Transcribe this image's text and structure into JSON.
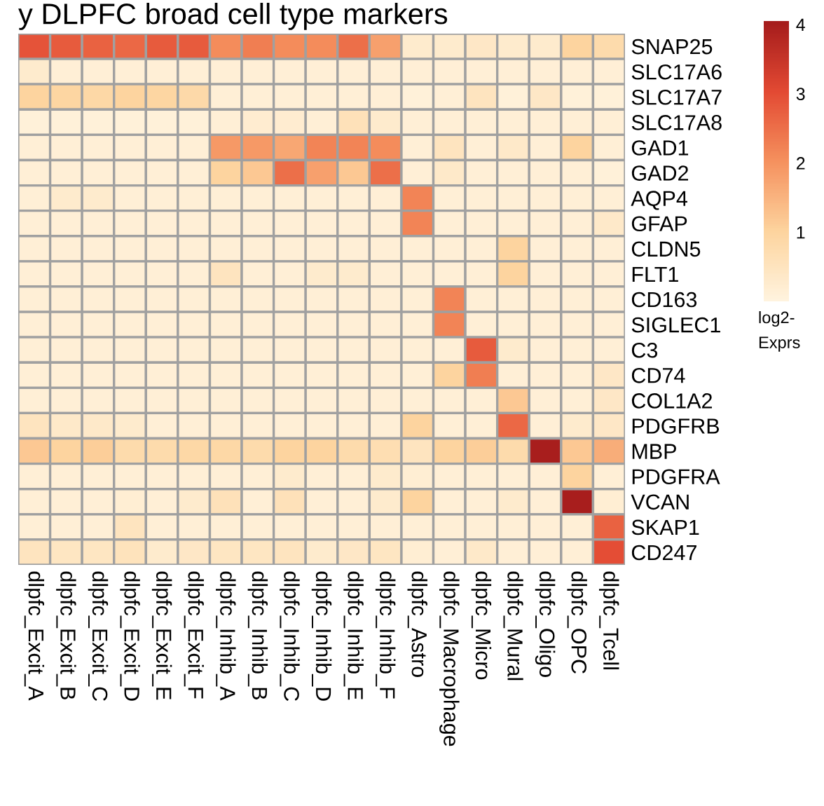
{
  "chart_data": {
    "type": "heatmap",
    "title": "y DLPFC broad cell type markers",
    "clabel": "log2-\nExprs",
    "clim": [
      0,
      4.05
    ],
    "cticks": [
      1,
      2,
      3,
      4
    ],
    "categories": [
      "dlpfc_Excit_A",
      "dlpfc_Excit_B",
      "dlpfc_Excit_C",
      "dlpfc_Excit_D",
      "dlpfc_Excit_E",
      "dlpfc_Excit_F",
      "dlpfc_Inhib_A",
      "dlpfc_Inhib_B",
      "dlpfc_Inhib_C",
      "dlpfc_Inhib_D",
      "dlpfc_Inhib_E",
      "dlpfc_Inhib_F",
      "dlpfc_Astro",
      "dlpfc_Macrophage",
      "dlpfc_Micro",
      "dlpfc_Mural",
      "dlpfc_Oligo",
      "dlpfc_OPC",
      "dlpfc_Tcell"
    ],
    "y_categories": [
      "SNAP25",
      "SLC17A6",
      "SLC17A7",
      "SLC17A8",
      "GAD1",
      "GAD2",
      "AQP4",
      "GFAP",
      "CLDN5",
      "FLT1",
      "CD163",
      "SIGLEC1",
      "C3",
      "CD74",
      "COL1A2",
      "PDGFRB",
      "MBP",
      "PDGFRA",
      "VCAN",
      "SKAP1",
      "CD247"
    ],
    "cells": [
      [
        2.9,
        2.8,
        2.7,
        2.6,
        2.8,
        2.8,
        2.1,
        2.3,
        2.1,
        2.1,
        2.5,
        1.8,
        0.3,
        0.3,
        0.4,
        0.3,
        0.3,
        1.0,
        0.8
      ],
      [
        0.3,
        0.15,
        0.15,
        0.15,
        0.15,
        0.15,
        0.15,
        0.15,
        0.15,
        0.15,
        0.15,
        0.15,
        0.15,
        0.15,
        0.15,
        0.15,
        0.15,
        0.15,
        0.15
      ],
      [
        1.0,
        0.95,
        0.9,
        1.0,
        0.95,
        0.85,
        0.15,
        0.15,
        0.15,
        0.15,
        0.15,
        0.15,
        0.1,
        0.15,
        0.5,
        0.1,
        0.4,
        0.1,
        0.1
      ],
      [
        0.1,
        0.1,
        0.1,
        0.1,
        0.1,
        0.1,
        0.15,
        0.25,
        0.25,
        0.15,
        0.6,
        0.3,
        0.15,
        0.15,
        0.15,
        0.15,
        0.15,
        0.15,
        0.15
      ],
      [
        0.15,
        0.15,
        0.15,
        0.15,
        0.15,
        0.15,
        1.9,
        1.9,
        1.7,
        2.2,
        2.2,
        2.1,
        0.15,
        0.5,
        0.15,
        0.35,
        0.15,
        1.0,
        0.15
      ],
      [
        0.15,
        0.15,
        0.15,
        0.15,
        0.15,
        0.15,
        1.0,
        1.2,
        2.5,
        1.8,
        1.2,
        2.5,
        0.15,
        0.35,
        0.15,
        0.15,
        0.15,
        0.15,
        0.1
      ],
      [
        0.15,
        0.3,
        0.3,
        0.15,
        0.15,
        0.15,
        0.15,
        0.15,
        0.15,
        0.15,
        0.15,
        0.15,
        2.2,
        0.15,
        0.15,
        0.15,
        0.15,
        0.15,
        0.15
      ],
      [
        0.15,
        0.15,
        0.15,
        0.15,
        0.15,
        0.15,
        0.15,
        0.15,
        0.15,
        0.15,
        0.15,
        0.15,
        2.2,
        0.15,
        0.15,
        0.15,
        0.15,
        0.15,
        0.35
      ],
      [
        0.15,
        0.15,
        0.15,
        0.15,
        0.15,
        0.15,
        0.15,
        0.15,
        0.15,
        0.15,
        0.15,
        0.15,
        0.15,
        0.15,
        0.15,
        1.0,
        0.15,
        0.15,
        0.15
      ],
      [
        0.15,
        0.15,
        0.15,
        0.15,
        0.15,
        0.15,
        0.5,
        0.15,
        0.15,
        0.3,
        0.3,
        0.15,
        0.15,
        0.15,
        0.15,
        1.0,
        0.15,
        0.15,
        0.15
      ],
      [
        0.15,
        0.15,
        0.15,
        0.15,
        0.15,
        0.15,
        0.15,
        0.15,
        0.15,
        0.15,
        0.15,
        0.15,
        0.15,
        2.2,
        0.15,
        0.15,
        0.15,
        0.15,
        0.15
      ],
      [
        0.15,
        0.15,
        0.15,
        0.15,
        0.15,
        0.15,
        0.15,
        0.15,
        0.15,
        0.15,
        0.15,
        0.15,
        0.15,
        2.2,
        0.15,
        0.15,
        0.15,
        0.15,
        0.15
      ],
      [
        0.15,
        0.15,
        0.15,
        0.15,
        0.15,
        0.15,
        0.15,
        0.15,
        0.15,
        0.15,
        0.15,
        0.15,
        0.15,
        0.15,
        2.8,
        0.3,
        0.15,
        0.15,
        0.15
      ],
      [
        0.15,
        0.15,
        0.15,
        0.15,
        0.15,
        0.15,
        0.15,
        0.15,
        0.15,
        0.15,
        0.15,
        0.15,
        0.15,
        1.0,
        2.3,
        0.15,
        0.15,
        0.15,
        0.4
      ],
      [
        0.15,
        0.15,
        0.15,
        0.15,
        0.15,
        0.15,
        0.15,
        0.15,
        0.15,
        0.15,
        0.15,
        0.15,
        0.15,
        0.15,
        0.15,
        1.2,
        0.15,
        0.15,
        0.4
      ],
      [
        0.5,
        0.35,
        0.35,
        0.3,
        0.15,
        0.15,
        0.15,
        0.15,
        0.15,
        0.15,
        0.15,
        0.15,
        1.0,
        0.15,
        0.15,
        2.6,
        0.15,
        0.3,
        0.4
      ],
      [
        1.2,
        1.0,
        1.1,
        0.8,
        0.8,
        0.9,
        0.9,
        0.8,
        1.0,
        1.0,
        0.8,
        0.7,
        0.5,
        1.0,
        1.1,
        0.8,
        4.0,
        1.2,
        1.6
      ],
      [
        0.15,
        0.15,
        0.15,
        0.15,
        0.15,
        0.15,
        0.15,
        0.15,
        0.3,
        0.15,
        0.15,
        0.3,
        0.2,
        0.15,
        0.15,
        0.15,
        0.15,
        1.0,
        0.15
      ],
      [
        0.15,
        0.15,
        0.15,
        0.2,
        0.15,
        0.3,
        0.6,
        0.15,
        0.6,
        0.15,
        0.15,
        0.3,
        1.0,
        0.15,
        0.15,
        0.3,
        0.15,
        4.0,
        0.2
      ],
      [
        0.15,
        0.15,
        0.15,
        0.5,
        0.15,
        0.15,
        0.15,
        0.15,
        0.15,
        0.15,
        0.15,
        0.15,
        0.15,
        0.15,
        0.15,
        0.15,
        0.15,
        0.15,
        2.7
      ],
      [
        0.5,
        0.45,
        0.45,
        0.55,
        0.3,
        0.4,
        0.45,
        0.45,
        0.5,
        0.3,
        0.4,
        0.45,
        0.2,
        0.15,
        0.35,
        0.15,
        0.15,
        0.15,
        3.0
      ]
    ]
  }
}
